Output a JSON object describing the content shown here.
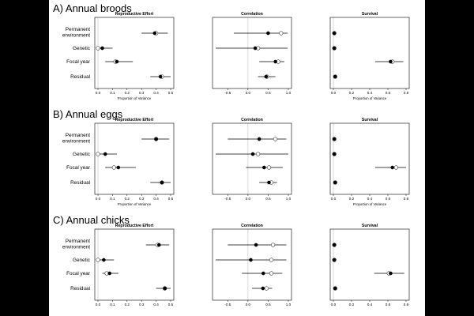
{
  "chart_data": [
    {
      "type": "forest",
      "title": "A) Annual broods",
      "rows": [
        "Permanent environment",
        "Genetic",
        "Focal year",
        "Residual"
      ],
      "panels": [
        {
          "title": "Reproductive Effort",
          "xlabel": "Proportion of Variance",
          "xlim": [
            0,
            0.5
          ],
          "ticks": [
            0,
            0.1,
            0.2,
            0.3,
            0.4,
            0.5
          ],
          "tick_labels": [
            "0.0",
            "0.1",
            "0.2",
            "0.3",
            "0.4",
            "0.5"
          ],
          "ref_line": 0,
          "series": [
            {
              "name": "estimate",
              "marker": "filled",
              "values": [
                0.39,
                0.03,
                0.13,
                0.43
              ],
              "ci_low": [
                0.3,
                0.0,
                0.05,
                0.36
              ],
              "ci_high": [
                0.48,
                0.1,
                0.24,
                0.5
              ]
            },
            {
              "name": "comparison",
              "marker": "open",
              "values": [
                0.4,
                0.0,
                0.12,
                0.44
              ]
            }
          ]
        },
        {
          "title": "Correlation",
          "xlabel": "",
          "xlim": [
            -0.8,
            1.0
          ],
          "ticks": [
            -0.5,
            0.0,
            0.5,
            1.0
          ],
          "tick_labels": [
            "-0.5",
            "0.0",
            "0.5",
            "1.0"
          ],
          "ref_line": 0,
          "series": [
            {
              "name": "estimate",
              "marker": "filled",
              "values": [
                0.5,
                0.18,
                0.68,
                0.45
              ],
              "ci_low": [
                -0.35,
                -0.8,
                0.28,
                0.25
              ],
              "ci_high": [
                0.98,
                0.98,
                0.9,
                0.68
              ]
            },
            {
              "name": "comparison",
              "marker": "open",
              "values": [
                0.82,
                0.25,
                0.75,
                0.47
              ]
            }
          ]
        },
        {
          "title": "Survival",
          "xlabel": "Proportion of Variance",
          "xlim": [
            0,
            0.8
          ],
          "ticks": [
            0,
            0.2,
            0.4,
            0.6,
            0.8
          ],
          "tick_labels": [
            "0.0",
            "0.2",
            "0.4",
            "0.6",
            "0.8"
          ],
          "ref_line": 0,
          "series": [
            {
              "name": "estimate",
              "marker": "filled",
              "values": [
                0.01,
                0.01,
                0.63,
                0.02
              ],
              "ci_low": [
                0.0,
                0.0,
                0.46,
                0.0
              ],
              "ci_high": [
                0.02,
                0.02,
                0.77,
                0.04
              ]
            },
            {
              "name": "comparison",
              "marker": "open",
              "values": [
                0.01,
                0.01,
                0.65,
                0.02
              ]
            }
          ]
        }
      ]
    },
    {
      "type": "forest",
      "title": "B) Annual eggs",
      "rows": [
        "Permanent environment",
        "Genetic",
        "Focal year",
        "Residual"
      ],
      "panels": [
        {
          "title": "Reproductive Effort",
          "xlabel": "Proportion of Variance",
          "xlim": [
            0,
            0.5
          ],
          "ticks": [
            0,
            0.1,
            0.2,
            0.3,
            0.4,
            0.5
          ],
          "tick_labels": [
            "0.0",
            "0.1",
            "0.2",
            "0.3",
            "0.4",
            "0.5"
          ],
          "ref_line": 0,
          "series": [
            {
              "name": "estimate",
              "marker": "filled",
              "values": [
                0.4,
                0.05,
                0.14,
                0.44
              ],
              "ci_low": [
                0.3,
                0.0,
                0.05,
                0.36
              ],
              "ci_high": [
                0.49,
                0.13,
                0.26,
                0.5
              ]
            },
            {
              "name": "comparison",
              "marker": "open",
              "values": [
                0.4,
                0.0,
                0.11,
                0.44
              ]
            }
          ]
        },
        {
          "title": "Correlation",
          "xlabel": "",
          "xlim": [
            -0.8,
            1.0
          ],
          "ticks": [
            -0.5,
            0.0,
            0.5,
            1.0
          ],
          "tick_labels": [
            "-0.5",
            "0.0",
            "0.5",
            "1.0"
          ],
          "ref_line": 0,
          "series": [
            {
              "name": "estimate",
              "marker": "filled",
              "values": [
                0.28,
                0.12,
                0.4,
                0.52
              ],
              "ci_low": [
                -0.5,
                -0.8,
                -0.05,
                0.28
              ],
              "ci_high": [
                0.95,
                1.0,
                0.86,
                0.72
              ]
            },
            {
              "name": "comparison",
              "marker": "open",
              "values": [
                0.68,
                0.25,
                0.52,
                0.58
              ]
            }
          ]
        },
        {
          "title": "Survival",
          "xlabel": "Proportion of Variance",
          "xlim": [
            0,
            0.8
          ],
          "ticks": [
            0,
            0.2,
            0.4,
            0.6,
            0.8
          ],
          "tick_labels": [
            "0.0",
            "0.2",
            "0.4",
            "0.6",
            "0.8"
          ],
          "ref_line": 0,
          "series": [
            {
              "name": "estimate",
              "marker": "filled",
              "values": [
                0.01,
                0.01,
                0.65,
                0.02
              ],
              "ci_low": [
                0.0,
                0.0,
                0.46,
                0.0
              ],
              "ci_high": [
                0.02,
                0.02,
                0.8,
                0.04
              ]
            },
            {
              "name": "comparison",
              "marker": "open",
              "values": [
                0.01,
                0.01,
                0.69,
                0.02
              ]
            }
          ]
        }
      ]
    },
    {
      "type": "forest",
      "title": "C) Annual chicks",
      "rows": [
        "Permanent environment",
        "Genetic",
        "Focal year",
        "Residual"
      ],
      "panels": [
        {
          "title": "Reproductive Effort",
          "xlabel": "",
          "xlim": [
            0,
            0.5
          ],
          "ticks": [
            0,
            0.1,
            0.2,
            0.3,
            0.4,
            0.5
          ],
          "tick_labels": [
            "0.0",
            "0.1",
            "0.2",
            "0.3",
            "0.4",
            "0.5"
          ],
          "ref_line": 0,
          "series": [
            {
              "name": "estimate",
              "marker": "filled",
              "values": [
                0.42,
                0.04,
                0.08,
                0.46
              ],
              "ci_low": [
                0.33,
                0.0,
                0.03,
                0.4
              ],
              "ci_high": [
                0.49,
                0.11,
                0.14,
                0.5
              ]
            },
            {
              "name": "comparison",
              "marker": "open",
              "values": [
                0.41,
                0.0,
                0.06,
                0.46
              ]
            }
          ]
        },
        {
          "title": "Correlation",
          "xlabel": "",
          "xlim": [
            -0.8,
            1.0
          ],
          "ticks": [
            -0.5,
            0.0,
            0.5,
            1.0
          ],
          "tick_labels": [
            "-0.5",
            "0.0",
            "0.5",
            "1.0"
          ],
          "ref_line": 0,
          "series": [
            {
              "name": "estimate",
              "marker": "filled",
              "values": [
                0.2,
                0.07,
                0.38,
                0.37
              ],
              "ci_low": [
                -0.5,
                -0.8,
                -0.15,
                0.1
              ],
              "ci_high": [
                0.95,
                0.95,
                0.85,
                0.6
              ]
            },
            {
              "name": "comparison",
              "marker": "open",
              "values": [
                0.62,
                0.58,
                0.58,
                0.46
              ]
            }
          ]
        },
        {
          "title": "Survival",
          "xlabel": "",
          "xlim": [
            0,
            0.8
          ],
          "ticks": [
            0,
            0.2,
            0.4,
            0.6,
            0.8
          ],
          "tick_labels": [
            "0.0",
            "0.2",
            "0.4",
            "0.6",
            "0.8"
          ],
          "ref_line": 0,
          "series": [
            {
              "name": "estimate",
              "marker": "filled",
              "values": [
                0.01,
                0.01,
                0.63,
                0.02
              ],
              "ci_low": [
                0.0,
                0.0,
                0.45,
                0.0
              ],
              "ci_high": [
                0.02,
                0.02,
                0.78,
                0.04
              ]
            },
            {
              "name": "comparison",
              "marker": "open",
              "values": [
                0.01,
                0.01,
                0.61,
                0.02
              ]
            }
          ]
        }
      ]
    }
  ]
}
